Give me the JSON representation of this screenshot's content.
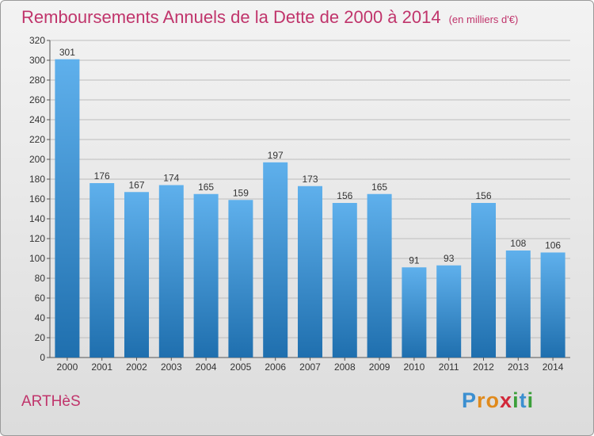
{
  "title": "Remboursements Annuels de la Dette de 2000 à 2014",
  "unit_note": "(en milliers d'€)",
  "commune": "ARTHèS",
  "logo": {
    "text": "Proxiti",
    "letters": [
      {
        "ch": "P",
        "color": "#3b8fd0"
      },
      {
        "ch": "r",
        "color": "#e08a1c"
      },
      {
        "ch": "o",
        "color": "#e08a1c"
      },
      {
        "ch": "x",
        "color": "#d2283a"
      },
      {
        "ch": "i",
        "color": "#3c9f3a"
      },
      {
        "ch": "t",
        "color": "#3b8fd0"
      },
      {
        "ch": "i",
        "color": "#3c9f3a"
      }
    ]
  },
  "colors": {
    "accent": "#c0346b",
    "bar_top": "#5fb0ec",
    "bar_bottom": "#1f6fae"
  },
  "chart_data": {
    "type": "bar",
    "categories": [
      "2000",
      "2001",
      "2002",
      "2003",
      "2004",
      "2005",
      "2006",
      "2007",
      "2008",
      "2009",
      "2010",
      "2011",
      "2012",
      "2013",
      "2014"
    ],
    "values": [
      301,
      176,
      167,
      174,
      165,
      159,
      197,
      173,
      156,
      165,
      91,
      93,
      156,
      108,
      106
    ],
    "title": "Remboursements Annuels de la Dette de 2000 à 2014",
    "ylim": [
      0,
      320
    ],
    "yticks": [
      0,
      20,
      40,
      60,
      80,
      100,
      120,
      140,
      160,
      180,
      200,
      220,
      240,
      260,
      280,
      300,
      320
    ],
    "grid": true
  }
}
